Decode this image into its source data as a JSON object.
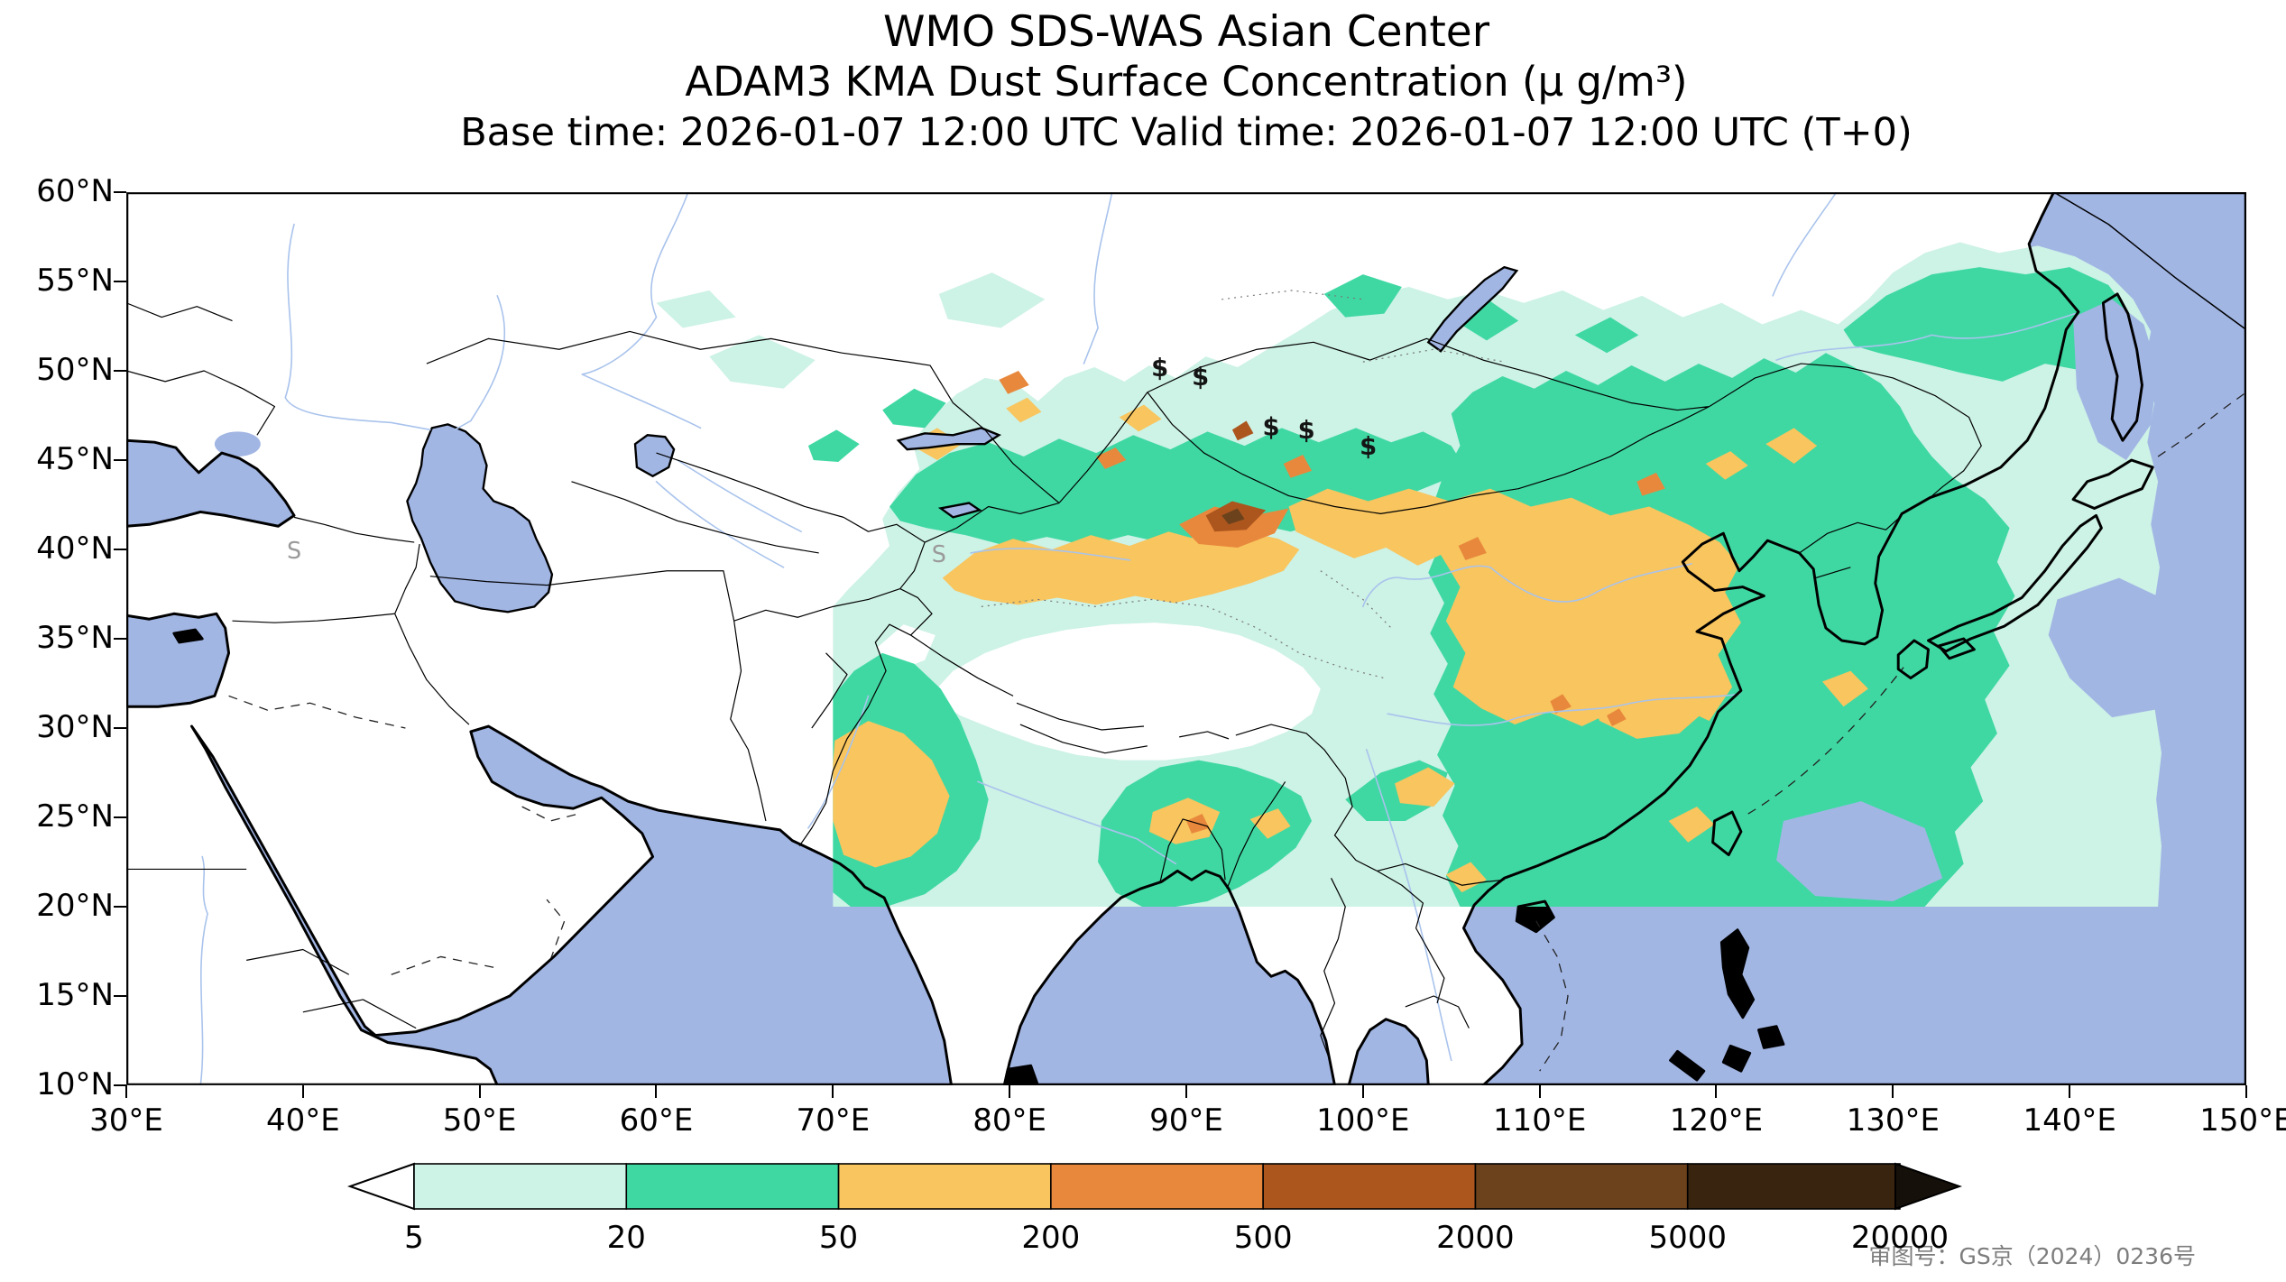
{
  "figure": {
    "title_line1": "WMO SDS-WAS Asian Center",
    "title_line2": "ADAM3 KMA Dust Surface Concentration (μ g/m³)",
    "title_line3": "Base time: 2026-01-07 12:00 UTC Valid time: 2026-01-07 12:00 UTC (T+0)"
  },
  "axes": {
    "x_ticks": [
      "30°E",
      "40°E",
      "50°E",
      "60°E",
      "70°E",
      "80°E",
      "90°E",
      "100°E",
      "110°E",
      "120°E",
      "130°E",
      "140°E",
      "150°E"
    ],
    "y_ticks": [
      "60°N",
      "55°N",
      "50°N",
      "45°N",
      "40°N",
      "35°N",
      "30°N",
      "25°N",
      "20°N",
      "15°N",
      "10°N"
    ]
  },
  "colorbar": {
    "labels": [
      "5",
      "20",
      "50",
      "200",
      "500",
      "2000",
      "5000",
      "20000"
    ],
    "segment_colors": [
      "#cdf2e6",
      "#3fd8a3",
      "#f8c55e",
      "#e8883c",
      "#ac561e",
      "#6b421c",
      "#392410"
    ],
    "left_arrow_color": "#ffffff",
    "right_arrow_color": "#16100a"
  },
  "annotation": {
    "map_license": "审图号：GS京（2024）0236号"
  },
  "symbols": {
    "dust_storm_glyph": "$",
    "dust_storm_positions": [
      [
        585,
        103
      ],
      [
        608,
        108
      ],
      [
        648,
        136
      ],
      [
        668,
        138
      ],
      [
        703,
        147
      ]
    ],
    "station_glyph": "S",
    "station_positions": [
      [
        95,
        205
      ],
      [
        460,
        207
      ]
    ]
  },
  "palette": {
    "ocean": "#a2b6e4",
    "land": "#ffffff",
    "river": "#a9c3ec",
    "conc_5_20": "#cdf2e6",
    "conc_20_50": "#3fd8a3",
    "conc_50_200": "#f8c55e",
    "conc_200_500": "#e8883c",
    "conc_500_2000": "#ac561e",
    "conc_2000_5000": "#6b421c",
    "conc_5000_20000": "#392410"
  },
  "chart_data": {
    "type": "heatmap",
    "title": "ADAM3 KMA Dust Surface Concentration (μ g/m³)",
    "units": "μg/m³",
    "base_time": "2026-01-07 12:00 UTC",
    "valid_time": "2026-01-07 12:00 UTC",
    "forecast_step": "T+0",
    "levels": [
      5,
      20,
      50,
      200,
      500,
      2000,
      5000,
      20000
    ],
    "legend_position": "bottom",
    "map_extent": {
      "lon_min": 30,
      "lon_max": 150,
      "lat_min": 10,
      "lat_max": 60
    },
    "model_domain": {
      "lon_min": 70,
      "lon_max": 145,
      "lat_min": 20,
      "lat_max": 57
    },
    "regions": [
      {
        "name": "Tarim Basin / eastern Tien Shan core (~90-96E, 41-44N)",
        "concentration_ug_m3": "500-2000"
      },
      {
        "name": "Taklamakan - Hexi corridor band (~76-96E, 37-43N)",
        "concentration_ug_m3": "50-200 with 200-500 core"
      },
      {
        "name": "Gobi / Northern China (~96-122E, 30-44N)",
        "concentration_ug_m3": "50-200"
      },
      {
        "name": "Northwest India / Pakistan (~68-78E, 22-30N)",
        "concentration_ug_m3": "50-200"
      },
      {
        "name": "Bengal / NE India (~86-93E, 21-26N)",
        "concentration_ug_m3": "50-200 patches"
      },
      {
        "name": "Eastern China, Korea, NE Asia, Central Asia band",
        "concentration_ug_m3": "20-50"
      },
      {
        "name": "Background over model domain (70-145E, 20-57N)",
        "concentration_ug_m3": "5-20"
      },
      {
        "name": "Dust storm reports ($ symbols) ~88-100E, 45-50N",
        "concentration_ug_m3": "observed"
      }
    ]
  }
}
